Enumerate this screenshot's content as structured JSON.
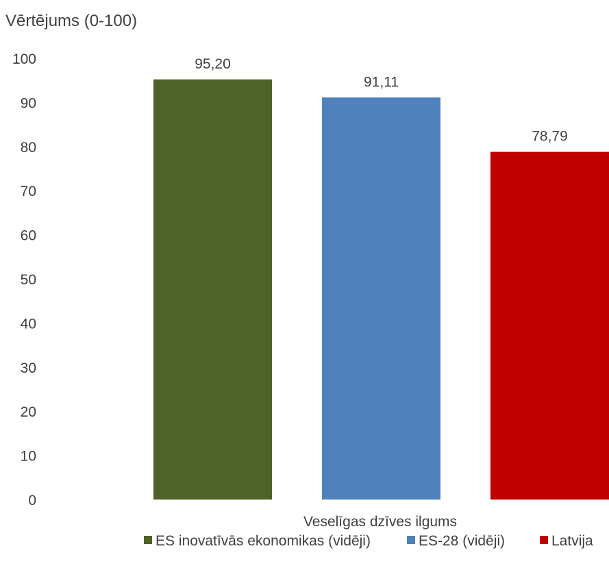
{
  "chart_data": {
    "type": "bar",
    "ylabel": "Vērtējums (0-100)",
    "xlabel": "Veselīgas dzīves ilgums",
    "ylim": [
      0,
      100
    ],
    "yticks": [
      0,
      10,
      20,
      30,
      40,
      50,
      60,
      70,
      80,
      90,
      100
    ],
    "grid": false,
    "legend_position": "bottom",
    "series": [
      {
        "name": "ES inovatīvās ekonomikas (vidēji)",
        "values": [
          95.2
        ],
        "label": "95,20",
        "color": "#4f6228"
      },
      {
        "name": "ES-28 (vidēji)",
        "values": [
          91.11
        ],
        "label": "91,11",
        "color": "#4f81bd"
      },
      {
        "name": "Latvija",
        "values": [
          78.79
        ],
        "label": "78,79",
        "color": "#c00000"
      }
    ]
  }
}
